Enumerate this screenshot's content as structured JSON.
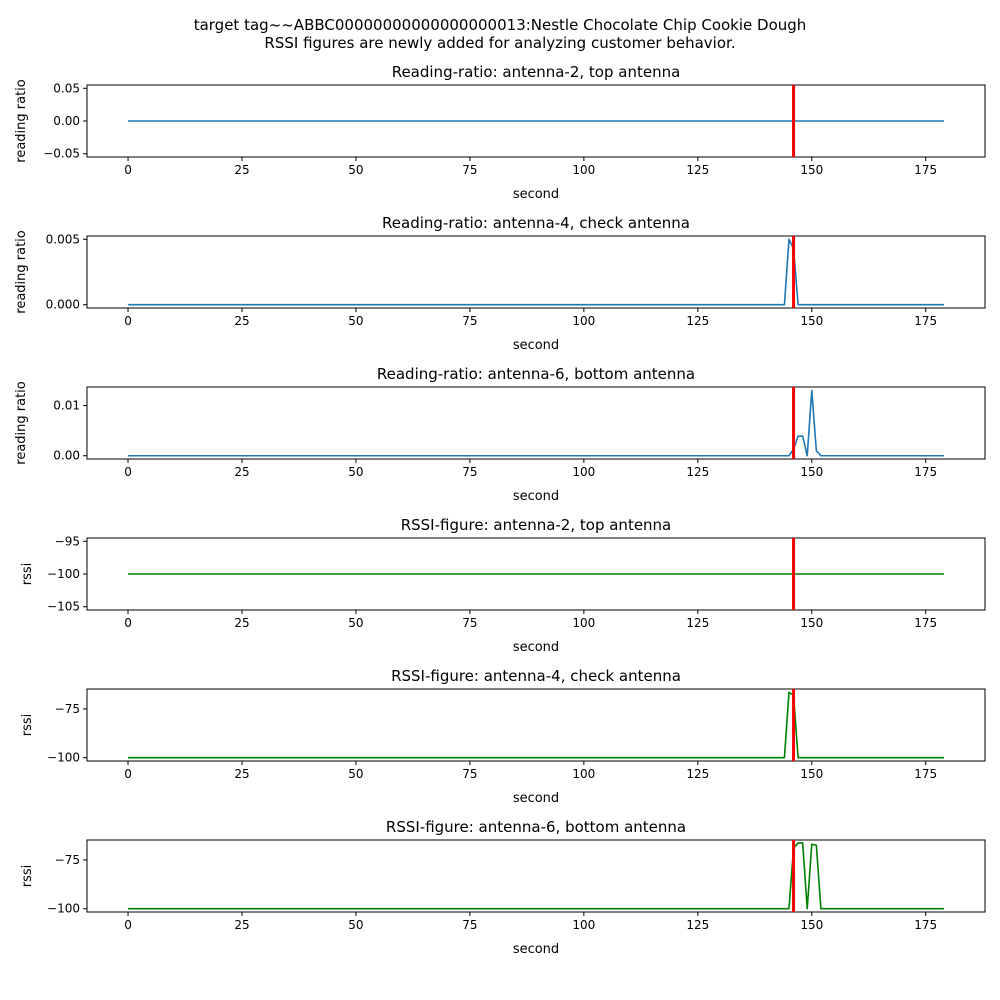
{
  "suptitle": {
    "line1": "target tag~~ABBC00000000000000000013:Nestle Chocolate Chip Cookie Dough",
    "line2": "RSSI figures are newly added for analyzing customer behavior."
  },
  "colors": {
    "ratio_line": "#1f77b4",
    "rssi_line": "#008000",
    "marker": "#ff0000"
  },
  "marker_x": 146,
  "chart_data": [
    {
      "type": "line",
      "title": "Reading-ratio: antenna-2, top antenna",
      "xlabel": "second",
      "ylabel": "reading ratio",
      "xlim": [
        -9,
        188
      ],
      "ylim": [
        -0.055,
        0.055
      ],
      "xticks": [
        0,
        25,
        50,
        75,
        100,
        125,
        150,
        175
      ],
      "xtick_labels": [
        "0",
        "25",
        "50",
        "75",
        "100",
        "125",
        "150",
        "175"
      ],
      "yticks": [
        0.05,
        0.0,
        -0.05
      ],
      "ytick_labels": [
        "0.05",
        "0.00",
        "−0.05"
      ],
      "series": [
        {
          "points": [
            [
              0,
              0
            ],
            [
              179,
              0
            ]
          ]
        }
      ]
    },
    {
      "type": "line",
      "title": "Reading-ratio: antenna-4, check antenna",
      "xlabel": "second",
      "ylabel": "reading ratio",
      "xlim": [
        -9,
        188
      ],
      "ylim": [
        -0.00025,
        0.00525
      ],
      "xticks": [
        0,
        25,
        50,
        75,
        100,
        125,
        150,
        175
      ],
      "xtick_labels": [
        "0",
        "25",
        "50",
        "75",
        "100",
        "125",
        "150",
        "175"
      ],
      "yticks": [
        0.005,
        0.0
      ],
      "ytick_labels": [
        "0.005",
        "0.000"
      ],
      "series": [
        {
          "points": [
            [
              0,
              0
            ],
            [
              144,
              0
            ],
            [
              145,
              0.005
            ],
            [
              146,
              0.0043
            ],
            [
              147,
              0
            ],
            [
              179,
              0
            ]
          ]
        }
      ]
    },
    {
      "type": "line",
      "title": "Reading-ratio: antenna-6, bottom antenna",
      "xlabel": "second",
      "ylabel": "reading ratio",
      "xlim": [
        -9,
        188
      ],
      "ylim": [
        -0.00065,
        0.0137
      ],
      "xticks": [
        0,
        25,
        50,
        75,
        100,
        125,
        150,
        175
      ],
      "xtick_labels": [
        "0",
        "25",
        "50",
        "75",
        "100",
        "125",
        "150",
        "175"
      ],
      "yticks": [
        0.01,
        0.0
      ],
      "ytick_labels": [
        "0.01",
        "0.00"
      ],
      "series": [
        {
          "points": [
            [
              0,
              0
            ],
            [
              145,
              0
            ],
            [
              146,
              0.0013
            ],
            [
              147,
              0.0039
            ],
            [
              148,
              0.0039
            ],
            [
              149,
              0
            ],
            [
              150,
              0.013
            ],
            [
              151,
              0.001
            ],
            [
              152,
              0
            ],
            [
              179,
              0
            ]
          ]
        }
      ]
    },
    {
      "type": "line",
      "title": "RSSI-figure: antenna-2, top antenna",
      "xlabel": "second",
      "ylabel": "rssi",
      "xlim": [
        -9,
        188
      ],
      "ylim": [
        -105.5,
        -94.5
      ],
      "xticks": [
        0,
        25,
        50,
        75,
        100,
        125,
        150,
        175
      ],
      "xtick_labels": [
        "0",
        "25",
        "50",
        "75",
        "100",
        "125",
        "150",
        "175"
      ],
      "yticks": [
        -95,
        -100,
        -105
      ],
      "ytick_labels": [
        "−95",
        "−100",
        "−105"
      ],
      "series": [
        {
          "points": [
            [
              0,
              -100
            ],
            [
              179,
              -100
            ]
          ]
        }
      ]
    },
    {
      "type": "line",
      "title": "RSSI-figure: antenna-4, check antenna",
      "xlabel": "second",
      "ylabel": "rssi",
      "xlim": [
        -9,
        188
      ],
      "ylim": [
        -101.7,
        -64.8
      ],
      "xticks": [
        0,
        25,
        50,
        75,
        100,
        125,
        150,
        175
      ],
      "xtick_labels": [
        "0",
        "25",
        "50",
        "75",
        "100",
        "125",
        "150",
        "175"
      ],
      "yticks": [
        -75,
        -100
      ],
      "ytick_labels": [
        "−75",
        "−100"
      ],
      "series": [
        {
          "points": [
            [
              0,
              -100
            ],
            [
              144,
              -100
            ],
            [
              145,
              -66.5
            ],
            [
              146,
              -68
            ],
            [
              147,
              -100
            ],
            [
              179,
              -100
            ]
          ]
        }
      ]
    },
    {
      "type": "line",
      "title": "RSSI-figure: antenna-6, bottom antenna",
      "xlabel": "second",
      "ylabel": "rssi",
      "xlim": [
        -9,
        188
      ],
      "ylim": [
        -101.7,
        -64.8
      ],
      "xticks": [
        0,
        25,
        50,
        75,
        100,
        125,
        150,
        175
      ],
      "xtick_labels": [
        "0",
        "25",
        "50",
        "75",
        "100",
        "125",
        "150",
        "175"
      ],
      "yticks": [
        -75,
        -100
      ],
      "ytick_labels": [
        "−75",
        "−100"
      ],
      "series": [
        {
          "points": [
            [
              0,
              -100
            ],
            [
              145,
              -100
            ],
            [
              146,
              -69
            ],
            [
              147,
              -66.3
            ],
            [
              148,
              -66.3
            ],
            [
              149,
              -100
            ],
            [
              150,
              -67
            ],
            [
              151,
              -67.5
            ],
            [
              152,
              -100
            ],
            [
              179,
              -100
            ]
          ]
        }
      ]
    }
  ]
}
